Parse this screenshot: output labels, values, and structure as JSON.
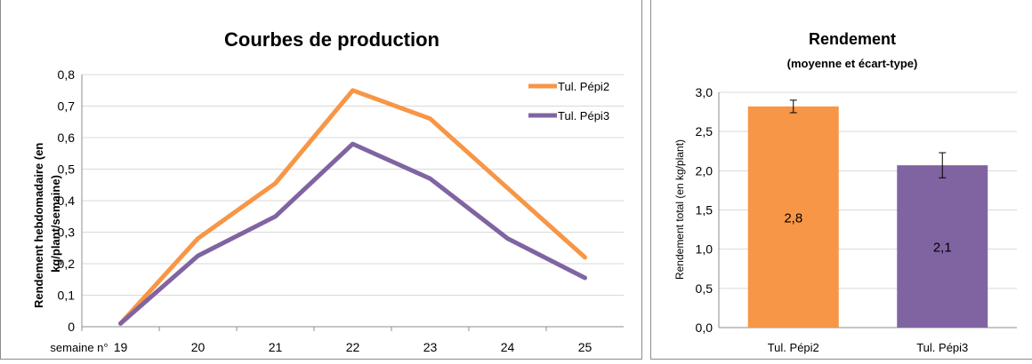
{
  "chart_data": [
    {
      "type": "line",
      "title": "Courbes de production",
      "ylabel": "Rendement hebdomadaire (en kg/plant/semaine)",
      "xlabel": "semaine n°",
      "categories": [
        "19",
        "20",
        "21",
        "22",
        "23",
        "24",
        "25"
      ],
      "ylim": [
        0,
        0.8
      ],
      "yticks": [
        "0",
        "0,1",
        "0,2",
        "0,3",
        "0,4",
        "0,5",
        "0,6",
        "0,7",
        "0,8"
      ],
      "grid": true,
      "legend": "top-right",
      "series": [
        {
          "name": "Tul. Pépi2",
          "color": "#f79646",
          "values": [
            0.01,
            0.28,
            0.455,
            0.75,
            0.66,
            0.44,
            0.22
          ]
        },
        {
          "name": "Tul. Pépi3",
          "color": "#8064a2",
          "values": [
            0.01,
            0.225,
            0.35,
            0.58,
            0.47,
            0.28,
            0.155
          ]
        }
      ]
    },
    {
      "type": "bar",
      "title": "Rendement",
      "subtitle": "(moyenne et écart-type)",
      "ylabel": "Rendement total (en kg/plant)",
      "categories": [
        "Tul. Pépi2",
        "Tul. Pépi3"
      ],
      "values": [
        2.82,
        2.07
      ],
      "value_labels": [
        "2,8",
        "2,1"
      ],
      "errors": [
        0.08,
        0.16
      ],
      "colors": [
        "#f79646",
        "#8064a2"
      ],
      "ylim": [
        0,
        3.0
      ],
      "yticks": [
        "0,0",
        "0,5",
        "1,0",
        "1,5",
        "2,0",
        "2,5",
        "3,0"
      ],
      "grid": true
    }
  ]
}
